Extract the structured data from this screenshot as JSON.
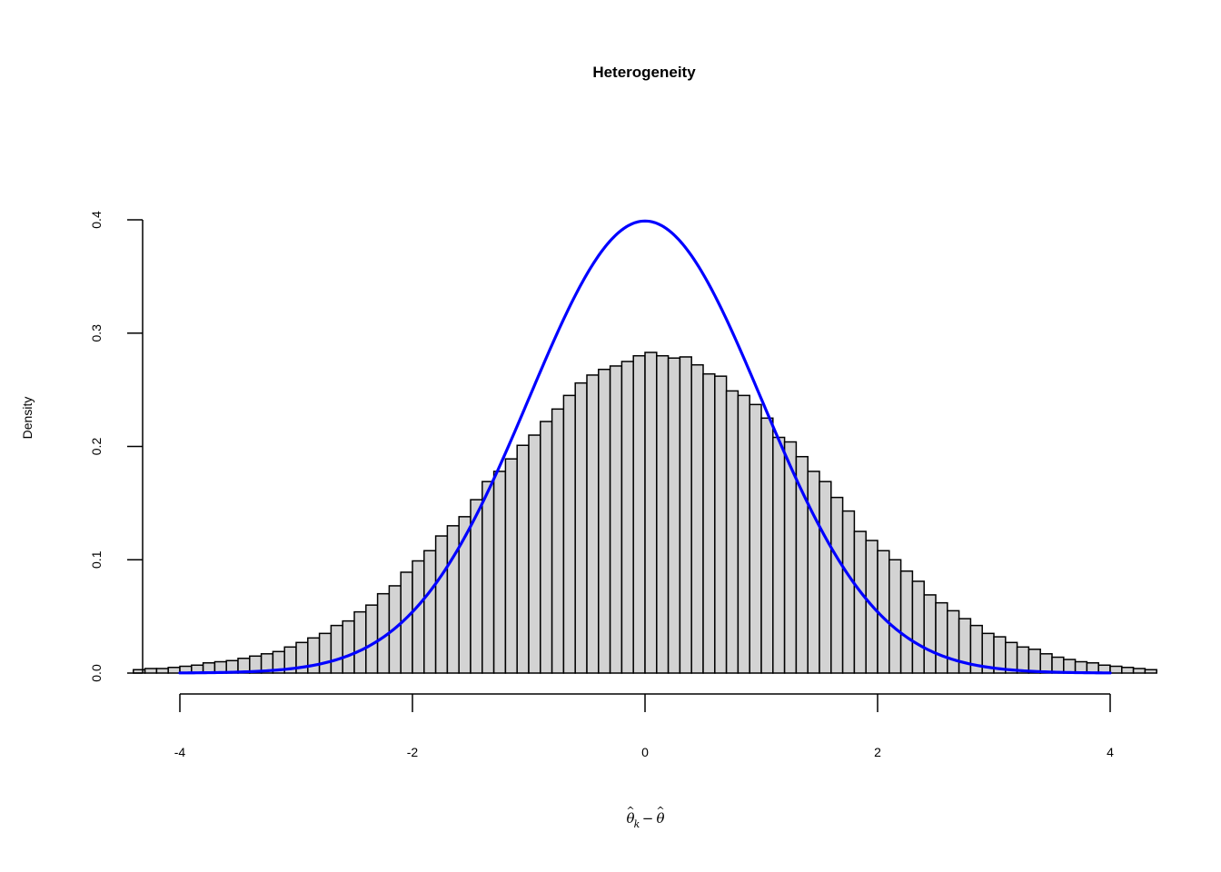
{
  "chart_data": {
    "type": "bar",
    "title": "Heterogeneity",
    "ylabel": "Density",
    "xlabel": {
      "base": "θ",
      "subscript": "k",
      "operator": "−",
      "second": "θ"
    },
    "ylim": [
      0,
      0.4
    ],
    "xlim": [
      -4.33,
      4.33
    ],
    "x_ticks": [
      -4,
      -2,
      0,
      2,
      4
    ],
    "x_tick_labels": [
      "-4",
      "-2",
      "0",
      "2",
      "4"
    ],
    "y_ticks": [
      0,
      0.1,
      0.2,
      0.3,
      0.4
    ],
    "y_tick_labels": [
      "0.0",
      "0.1",
      "0.2",
      "0.3",
      "0.4"
    ],
    "grid": false,
    "bar_fill": "#d3d3d3",
    "bar_stroke": "#000000",
    "curve_color": "#0000ff",
    "histogram": {
      "bin_start": -4.4,
      "bin_width": 0.1,
      "values": [
        0.003,
        0.004,
        0.004,
        0.005,
        0.006,
        0.007,
        0.009,
        0.01,
        0.011,
        0.013,
        0.015,
        0.017,
        0.019,
        0.023,
        0.027,
        0.031,
        0.035,
        0.042,
        0.046,
        0.054,
        0.06,
        0.07,
        0.077,
        0.089,
        0.099,
        0.108,
        0.121,
        0.13,
        0.138,
        0.153,
        0.169,
        0.178,
        0.189,
        0.201,
        0.21,
        0.222,
        0.233,
        0.245,
        0.256,
        0.263,
        0.268,
        0.271,
        0.275,
        0.28,
        0.283,
        0.28,
        0.278,
        0.279,
        0.272,
        0.264,
        0.262,
        0.249,
        0.245,
        0.237,
        0.225,
        0.208,
        0.204,
        0.191,
        0.178,
        0.169,
        0.155,
        0.143,
        0.125,
        0.117,
        0.108,
        0.1,
        0.09,
        0.081,
        0.069,
        0.062,
        0.055,
        0.048,
        0.042,
        0.035,
        0.032,
        0.027,
        0.023,
        0.021,
        0.017,
        0.014,
        0.012,
        0.01,
        0.009,
        0.007,
        0.006,
        0.005,
        0.004,
        0.003
      ]
    },
    "curve": {
      "name": "",
      "function": "standard normal density",
      "x_range": [
        -4,
        4
      ]
    }
  }
}
